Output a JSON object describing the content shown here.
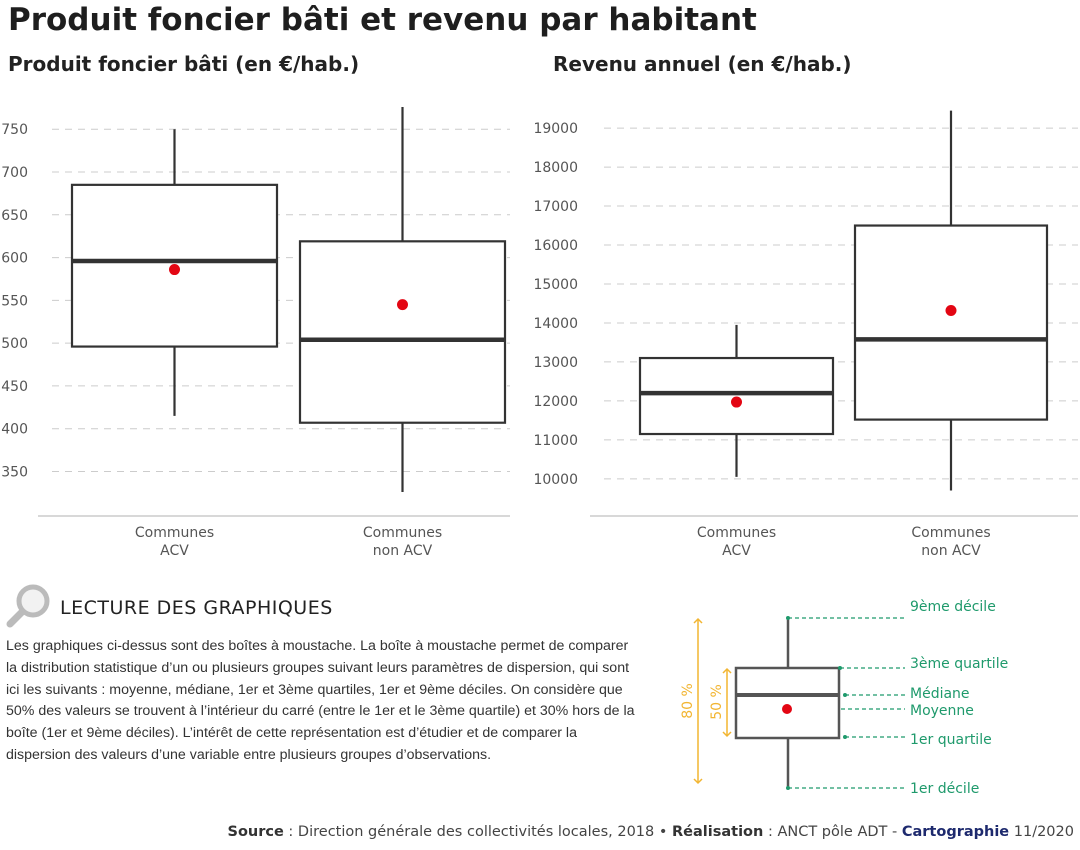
{
  "title": "Produit foncier bâti et revenu par habitant",
  "chart_data": [
    {
      "type": "boxplot",
      "title": "Produit foncier bâti (en €/hab.)",
      "categories": [
        "Communes\nACV",
        "Communes\nnon ACV"
      ],
      "category_lines": [
        [
          "Communes",
          "ACV"
        ],
        [
          "Communes",
          "non ACV"
        ]
      ],
      "yticks": [
        350,
        400,
        450,
        500,
        550,
        600,
        650,
        700,
        750
      ],
      "ylim": [
        305,
        790
      ],
      "grid": true,
      "series": [
        {
          "d1": 415,
          "q1": 496,
          "median": 596,
          "mean": 586,
          "q3": 685,
          "d9": 750
        },
        {
          "d1": 326,
          "q1": 407,
          "median": 504,
          "mean": 545,
          "q3": 619,
          "d9": 776
        }
      ]
    },
    {
      "type": "boxplot",
      "title": "Revenu annuel (en €/hab.)",
      "categories": [
        "Communes\nACV",
        "Communes\nnon ACV"
      ],
      "category_lines": [
        [
          "Communes",
          "ACV"
        ],
        [
          "Communes",
          "non ACV"
        ]
      ],
      "yticks": [
        10000,
        11000,
        12000,
        13000,
        14000,
        15000,
        16000,
        17000,
        18000,
        19000
      ],
      "ylim": [
        9200,
        19850
      ],
      "grid": true,
      "series": [
        {
          "d1": 10050,
          "q1": 11150,
          "median": 12200,
          "mean": 11970,
          "q3": 13100,
          "d9": 13950
        },
        {
          "d1": 9700,
          "q1": 11520,
          "median": 13580,
          "mean": 14320,
          "q3": 16500,
          "d9": 19450
        }
      ]
    }
  ],
  "colors": {
    "box": "#333333",
    "mean": "#e30613",
    "grid": "#cccccc",
    "legend_green": "#1f9a6c",
    "legend_yellow": "#f2b531"
  },
  "lecture": {
    "icon": "magnifier-icon",
    "title": "LECTURE DES GRAPHIQUES",
    "text": "Les graphiques ci-dessus sont des boîtes à moustache. La boîte à moustache permet de comparer la distribution statistique d’un ou plusieurs groupes suivant leurs paramètres de dispersion, qui sont ici les suivants : moyenne, médiane, 1er et 3ème quartiles, 1er et 9ème déciles. On considère que 50% des valeurs se trouvent à l’intérieur du carré (entre le 1er et le 3ème quartile) et 30% hors de la boîte (1er et 9ème déciles). L’intérêt de cette représentation est d’étudier et de comparer la dispersion des valeurs d’une variable entre plusieurs groupes d’observations."
  },
  "legend": {
    "d9": "9ème décile",
    "q3": "3ème quartile",
    "median": "Médiane",
    "mean": "Moyenne",
    "q1": "1er quartile",
    "d1": "1er décile",
    "pct80": "80 %",
    "pct50": "50 %"
  },
  "footer": {
    "source_label": "Source",
    "source_text": " : Direction générale des collectivités locales, 2018 • ",
    "realisation_label": "Réalisation",
    "realisation_text": " : ANCT pôle ADT - ",
    "carto_label": "Cartographie",
    "carto_date": " 11/2020"
  }
}
